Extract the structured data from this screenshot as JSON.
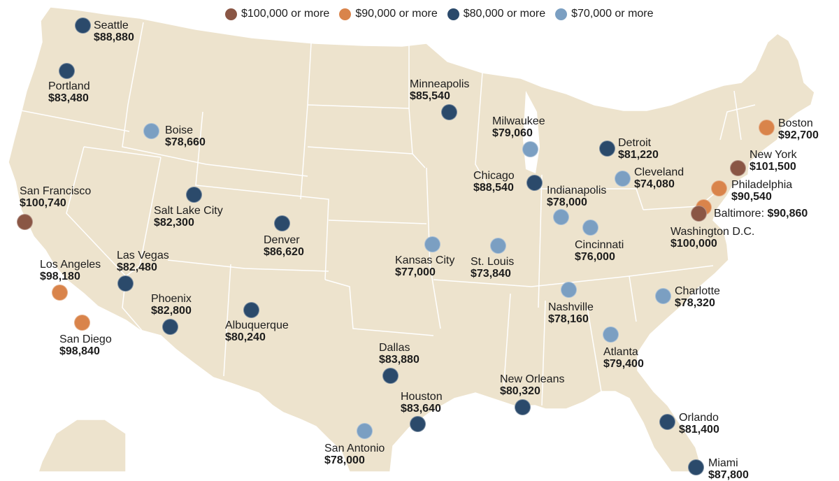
{
  "legend": [
    {
      "label": "$100,000 or more",
      "color": "#8a5645"
    },
    {
      "label": "$90,000 or more",
      "color": "#d9844b"
    },
    {
      "label": "$80,000 or more",
      "color": "#2b4a6b"
    },
    {
      "label": "$70,000 or more",
      "color": "#7b9fc2"
    }
  ],
  "map": {
    "land_color": "#ede3cd",
    "border_color": "#ffffff"
  },
  "cities": [
    {
      "name": "Seattle",
      "salary": "$88,880",
      "tier": "80k"
    },
    {
      "name": "Portland",
      "salary": "$83,480",
      "tier": "80k"
    },
    {
      "name": "Boise",
      "salary": "$78,660",
      "tier": "70k"
    },
    {
      "name": "San Francisco",
      "salary": "$100,740",
      "tier": "100k"
    },
    {
      "name": "Salt Lake City",
      "salary": "$82,300",
      "tier": "80k"
    },
    {
      "name": "Denver",
      "salary": "$86,620",
      "tier": "80k"
    },
    {
      "name": "Las Vegas",
      "salary": "$82,480",
      "tier": "80k"
    },
    {
      "name": "Los Angeles",
      "salary": "$98,180",
      "tier": "90k"
    },
    {
      "name": "San Diego",
      "salary": "$98,840",
      "tier": "90k"
    },
    {
      "name": "Phoenix",
      "salary": "$82,800",
      "tier": "80k"
    },
    {
      "name": "Albuquerque",
      "salary": "$80,240",
      "tier": "80k"
    },
    {
      "name": "Minneapolis",
      "salary": "$85,540",
      "tier": "80k"
    },
    {
      "name": "Milwaukee",
      "salary": "$79,060",
      "tier": "70k"
    },
    {
      "name": "Chicago",
      "salary": "$88,540",
      "tier": "80k"
    },
    {
      "name": "Detroit",
      "salary": "$81,220",
      "tier": "80k"
    },
    {
      "name": "Cleveland",
      "salary": "$74,080",
      "tier": "70k"
    },
    {
      "name": "Indianapolis",
      "salary": "$78,000",
      "tier": "70k"
    },
    {
      "name": "Cincinnati",
      "salary": "$76,000",
      "tier": "70k"
    },
    {
      "name": "Kansas City",
      "salary": "$77,000",
      "tier": "70k"
    },
    {
      "name": "St. Louis",
      "salary": "$73,840",
      "tier": "70k"
    },
    {
      "name": "Nashville",
      "salary": "$78,160",
      "tier": "70k"
    },
    {
      "name": "Charlotte",
      "salary": "$78,320",
      "tier": "70k"
    },
    {
      "name": "Atlanta",
      "salary": "$79,400",
      "tier": "70k"
    },
    {
      "name": "Dallas",
      "salary": "$83,880",
      "tier": "80k"
    },
    {
      "name": "Houston",
      "salary": "$83,640",
      "tier": "80k"
    },
    {
      "name": "San Antonio",
      "salary": "$78,000",
      "tier": "70k"
    },
    {
      "name": "New Orleans",
      "salary": "$80,320",
      "tier": "80k"
    },
    {
      "name": "Orlando",
      "salary": "$81,400",
      "tier": "80k"
    },
    {
      "name": "Miami",
      "salary": "$87,800",
      "tier": "80k"
    },
    {
      "name": "Boston",
      "salary": "$92,700",
      "tier": "90k"
    },
    {
      "name": "New York",
      "salary": "$101,500",
      "tier": "100k"
    },
    {
      "name": "Philadelphia",
      "salary": "$90,540",
      "tier": "90k"
    },
    {
      "name": "Baltimore:",
      "salary": "$90,860",
      "tier": "90k"
    },
    {
      "name": "Washington D.C.",
      "salary": "$100,000",
      "tier": "100k"
    }
  ],
  "tier_colors": {
    "100k": "#8a5645",
    "90k": "#d9844b",
    "80k": "#2b4a6b",
    "70k": "#7b9fc2"
  }
}
